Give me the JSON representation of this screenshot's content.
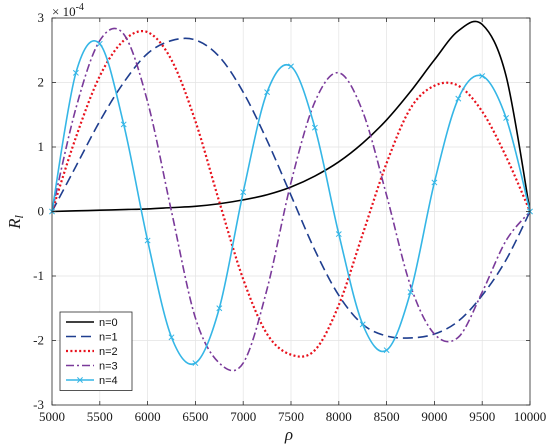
{
  "chart_data": {
    "type": "line",
    "xlabel": "ρ",
    "ylabel_main": "R",
    "ylabel_sub": "l",
    "y_exponent_base": "× 10",
    "y_exponent_power": "-4",
    "xlim": [
      5000,
      10000
    ],
    "ylim": [
      -3,
      3
    ],
    "x_ticks": [
      5000,
      5500,
      6000,
      6500,
      7000,
      7500,
      8000,
      8500,
      9000,
      9500,
      10000
    ],
    "y_ticks": [
      -3,
      -2,
      -1,
      0,
      1,
      2,
      3
    ],
    "grid": true,
    "legend_position": "bottom-left",
    "x": [
      5000,
      5250,
      5500,
      5750,
      6000,
      6250,
      6500,
      6750,
      7000,
      7250,
      7500,
      7750,
      8000,
      8250,
      8500,
      8750,
      9000,
      9250,
      9500,
      9750,
      10000
    ],
    "series": [
      {
        "name": "n=0",
        "color": "#000000",
        "dash": "solid",
        "marker": "none",
        "values": [
          0,
          0.01,
          0.02,
          0.03,
          0.04,
          0.06,
          0.08,
          0.12,
          0.18,
          0.26,
          0.38,
          0.55,
          0.77,
          1.06,
          1.42,
          1.86,
          2.35,
          2.8,
          2.9,
          2.1,
          0
        ]
      },
      {
        "name": "n=1",
        "color": "#1f3e8f",
        "dash": "long-dash",
        "marker": "none",
        "values": [
          0,
          0.7,
          1.4,
          2.0,
          2.45,
          2.65,
          2.66,
          2.4,
          1.85,
          1.1,
          0.25,
          -0.6,
          -1.3,
          -1.75,
          -1.93,
          -1.96,
          -1.9,
          -1.7,
          -1.3,
          -0.75,
          0
        ]
      },
      {
        "name": "n=2",
        "color": "#e8111c",
        "dash": "dotted",
        "marker": "none",
        "values": [
          0,
          1.15,
          2.1,
          2.65,
          2.78,
          2.35,
          1.4,
          0.15,
          -1.05,
          -1.9,
          -2.22,
          -2.15,
          -1.45,
          -0.35,
          0.75,
          1.6,
          1.95,
          1.95,
          1.55,
          0.85,
          0
        ]
      },
      {
        "name": "n=3",
        "color": "#7a3a9a",
        "dash": "dash-dot",
        "marker": "none",
        "values": [
          0,
          1.6,
          2.65,
          2.75,
          1.7,
          0.0,
          -1.65,
          -2.35,
          -2.35,
          -1.2,
          0.45,
          1.7,
          2.15,
          1.55,
          0.25,
          -1.15,
          -1.9,
          -1.95,
          -1.25,
          -0.45,
          0
        ]
      },
      {
        "name": "n=4",
        "color": "#35b6e6",
        "dash": "solid",
        "marker": "x",
        "values": [
          0,
          2.15,
          2.6,
          1.35,
          -0.45,
          -1.95,
          -2.35,
          -1.5,
          0.3,
          1.85,
          2.25,
          1.3,
          -0.35,
          -1.75,
          -2.15,
          -1.25,
          0.45,
          1.75,
          2.1,
          1.45,
          0
        ]
      }
    ]
  }
}
